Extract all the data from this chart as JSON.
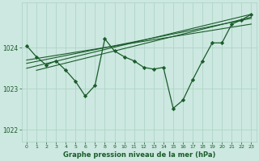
{
  "bg_color": "#cce8e0",
  "grid_color": "#b0d4c8",
  "line_color": "#1a5c2a",
  "title": "Graphe pression niveau de la mer (hPa)",
  "xlim": [
    -0.5,
    23.5
  ],
  "ylim": [
    1021.7,
    1025.1
  ],
  "yticks": [
    1022,
    1023,
    1024
  ],
  "xticks": [
    0,
    1,
    2,
    3,
    4,
    5,
    6,
    7,
    8,
    9,
    10,
    11,
    12,
    13,
    14,
    15,
    16,
    17,
    18,
    19,
    20,
    21,
    22,
    23
  ],
  "series_main_x": [
    0,
    1,
    2,
    3,
    4,
    5,
    6,
    7,
    8,
    9,
    10,
    11,
    12,
    13,
    14,
    15,
    16,
    17,
    18,
    19,
    20,
    21,
    22,
    23
  ],
  "series_main_y": [
    1024.05,
    1023.78,
    1023.58,
    1023.68,
    1023.45,
    1023.18,
    1022.82,
    1023.08,
    1024.22,
    1023.92,
    1023.78,
    1023.68,
    1023.52,
    1023.48,
    1023.52,
    1022.52,
    1022.72,
    1023.22,
    1023.68,
    1024.12,
    1024.12,
    1024.58,
    1024.68,
    1024.82
  ],
  "trend1_x": [
    0,
    23
  ],
  "trend1_y": [
    1023.62,
    1024.72
  ],
  "trend2_x": [
    0,
    23
  ],
  "trend2_y": [
    1023.5,
    1024.82
  ],
  "trend3_x": [
    0,
    23
  ],
  "trend3_y": [
    1023.7,
    1024.58
  ],
  "trend4_x": [
    1,
    23
  ],
  "trend4_y": [
    1023.45,
    1024.75
  ]
}
